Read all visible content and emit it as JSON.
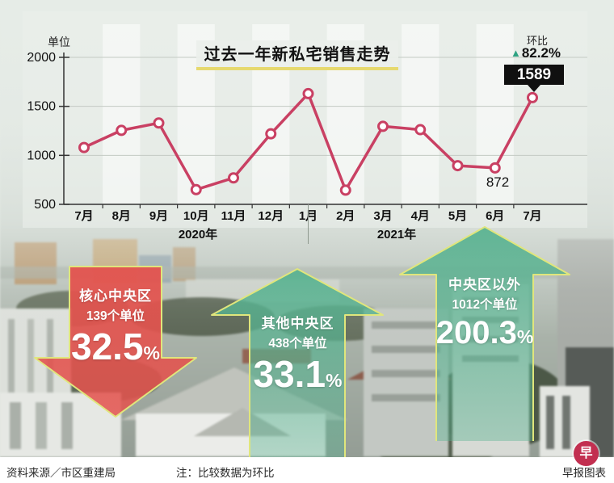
{
  "title": "过去一年新私宅销售走势",
  "y_axis_label": "单位",
  "mom": {
    "label": "环比",
    "triangle": "▲",
    "value": "82.2%",
    "triangle_color": "#2fa383"
  },
  "chart_data": {
    "type": "line",
    "x": [
      "7月",
      "8月",
      "9月",
      "10月",
      "11月",
      "12月",
      "1月",
      "2月",
      "3月",
      "4月",
      "5月",
      "6月",
      "7月"
    ],
    "year_groups": [
      {
        "label": "2020年"
      },
      {
        "label": "2021年"
      }
    ],
    "series": [
      {
        "name": "新私宅销售",
        "values": [
          1080,
          1255,
          1330,
          650,
          770,
          1220,
          1630,
          645,
          1296,
          1262,
          895,
          872,
          1589
        ]
      }
    ],
    "ylim": [
      500,
      2000
    ],
    "yticks": [
      500,
      1000,
      1500,
      2000
    ],
    "line_color": "#c94063",
    "grid": true,
    "annotations": [
      {
        "month": "6月",
        "text": "872"
      },
      {
        "month": "7月",
        "text": "1589"
      }
    ]
  },
  "arrows": [
    {
      "direction": "down",
      "region": "核心中央区",
      "units": "139个单位",
      "pct": "32.5",
      "pct_sign": "%",
      "color": "#e3534e"
    },
    {
      "direction": "up",
      "region": "其他中央区",
      "units": "438个单位",
      "pct": "33.1",
      "pct_sign": "%",
      "color": "#58b290"
    },
    {
      "direction": "up",
      "region": "中央区以外",
      "units": "1012个单位",
      "pct": "200.3",
      "pct_sign": "%",
      "color": "#58b290"
    }
  ],
  "footer": {
    "source": "资料来源／市区重建局",
    "note": "注：比较数据为环比",
    "credit": "早报图表",
    "logo_char": "早"
  }
}
